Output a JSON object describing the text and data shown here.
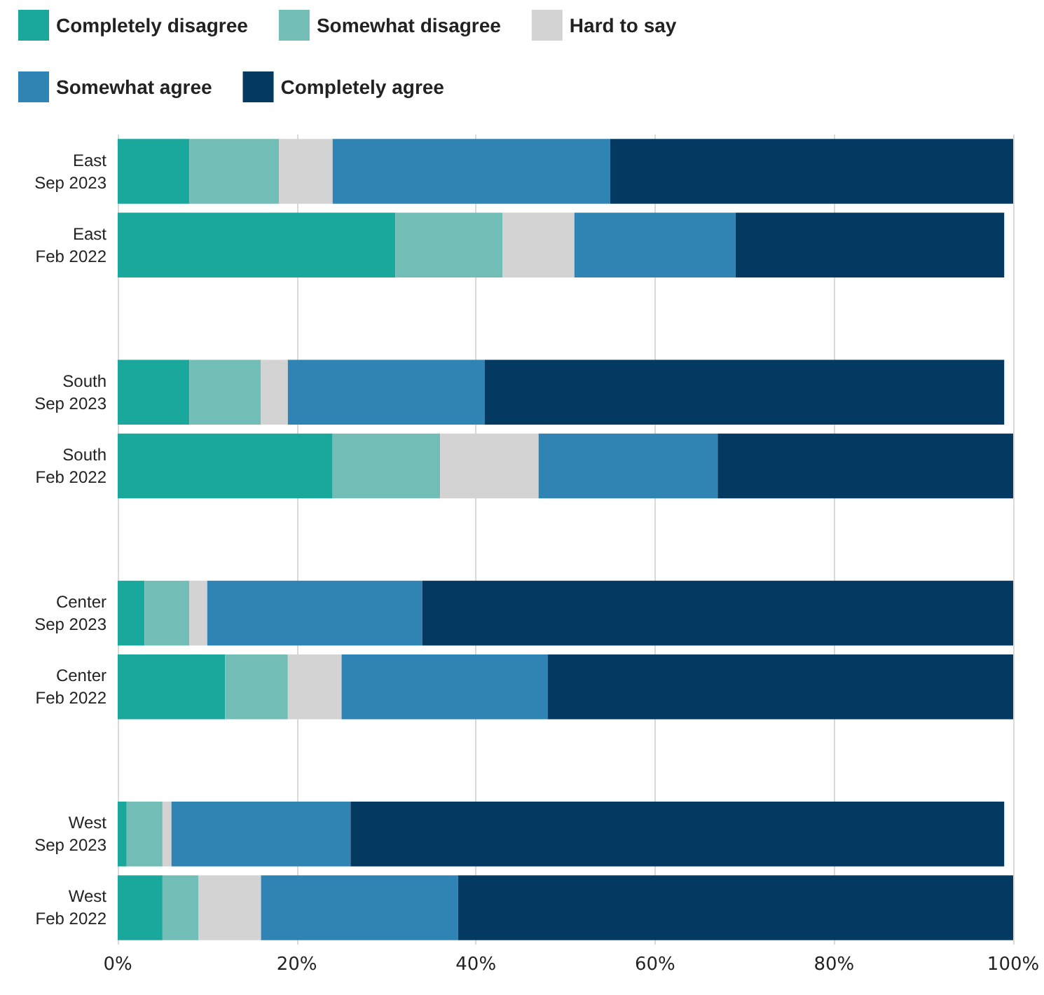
{
  "chart_data": {
    "type": "bar",
    "orientation": "horizontal",
    "stacked": true,
    "categories": [
      "East\nSep 2023",
      "East\nFeb 2022",
      null,
      "South\nSep 2023",
      "South\nFeb 2022",
      null,
      "Center\nSep 2023",
      "Center\nFeb 2022",
      null,
      "West\nSep 2023",
      "West\nFeb 2022"
    ],
    "series": [
      {
        "name": "Completely disagree",
        "color": "#1aa89c",
        "values": [
          8,
          31,
          null,
          8,
          24,
          null,
          3,
          12,
          null,
          1,
          5
        ]
      },
      {
        "name": "Somewhat disagree",
        "color": "#72bdb6",
        "values": [
          10,
          12,
          null,
          8,
          12,
          null,
          5,
          7,
          null,
          4,
          4
        ]
      },
      {
        "name": "Hard to say",
        "color": "#d3d3d3",
        "values": [
          6,
          8,
          null,
          3,
          11,
          null,
          2,
          6,
          null,
          1,
          7
        ]
      },
      {
        "name": "Somewhat agree",
        "color": "#3084b4",
        "values": [
          31,
          18,
          null,
          22,
          20,
          null,
          24,
          23,
          null,
          20,
          22
        ]
      },
      {
        "name": "Completely agree",
        "color": "#043962",
        "values": [
          45,
          30,
          null,
          58,
          33,
          null,
          66,
          52,
          null,
          73,
          62
        ]
      }
    ],
    "xlim": [
      0,
      100
    ],
    "xticks": [
      {
        "value": 0,
        "label": "0%"
      },
      {
        "value": 20,
        "label": "20%"
      },
      {
        "value": 40,
        "label": "40%"
      },
      {
        "value": 60,
        "label": "60%"
      },
      {
        "value": 80,
        "label": "80%"
      },
      {
        "value": 100,
        "label": "100%"
      }
    ],
    "grid": "x",
    "legend": "top left"
  }
}
